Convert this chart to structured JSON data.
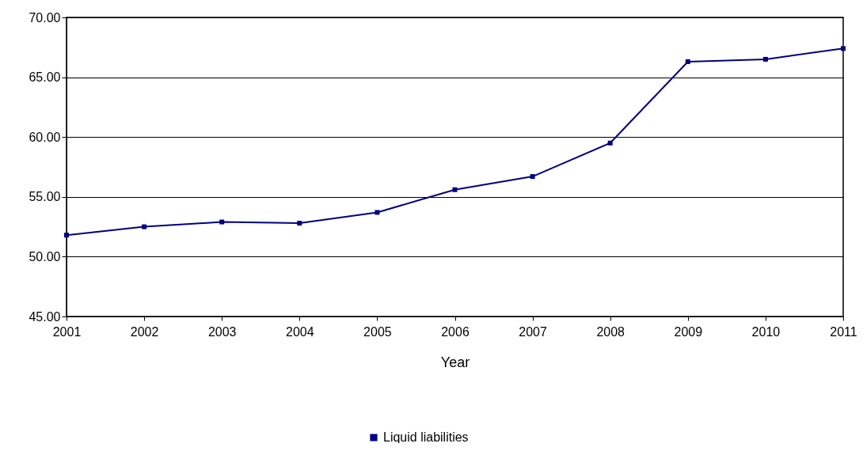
{
  "chart_data": {
    "type": "line",
    "xlabel": "Year",
    "x": [
      2001,
      2002,
      2003,
      2004,
      2005,
      2006,
      2007,
      2008,
      2009,
      2010,
      2011
    ],
    "series": [
      {
        "name": "Liquid liabilities",
        "color": "#000080",
        "values": [
          51.8,
          52.5,
          52.9,
          52.8,
          53.7,
          55.6,
          56.7,
          59.5,
          66.3,
          66.5,
          67.4
        ]
      }
    ],
    "xlim": [
      2001,
      2011
    ],
    "xticks": [
      2001,
      2002,
      2003,
      2004,
      2005,
      2006,
      2007,
      2008,
      2009,
      2010,
      2011
    ],
    "ylim": [
      45,
      70
    ],
    "yticks": [
      {
        "value": 45,
        "label": "45.00"
      },
      {
        "value": 50,
        "label": "50.00"
      },
      {
        "value": 55,
        "label": "55.00"
      },
      {
        "value": 60,
        "label": "60.00"
      },
      {
        "value": 65,
        "label": "65.00"
      },
      {
        "value": 70,
        "label": "70.00"
      }
    ],
    "grid": "y",
    "legend": "bottom",
    "marker": "square",
    "line_style": "solid"
  }
}
